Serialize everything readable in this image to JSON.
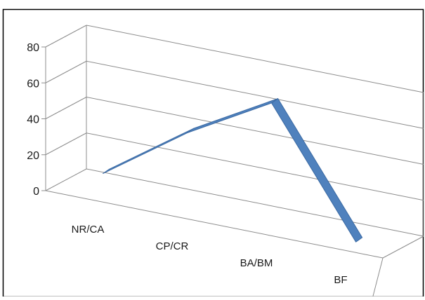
{
  "chart_data": {
    "type": "line",
    "style": "3d-ribbon",
    "title": "",
    "xlabel": "",
    "ylabel": "",
    "categories": [
      "NR/CA",
      "CP/CR",
      "BA/BM",
      "BF"
    ],
    "series": [
      {
        "values": [
          10,
          42,
          68,
          0
        ]
      }
    ],
    "ylim": [
      0,
      80
    ],
    "yticks": [
      0,
      20,
      40,
      60,
      80
    ],
    "grid": true,
    "legend": "none",
    "colors": {
      "series": "#4f81bd",
      "series_edge": "#3b6aa3",
      "grid": "#8c8c8c",
      "frame": "#000000"
    }
  }
}
